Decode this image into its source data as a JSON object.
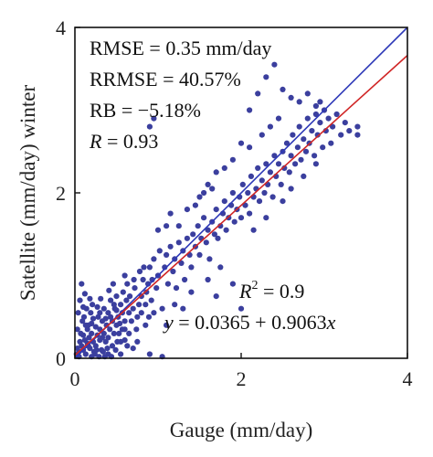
{
  "chart_data": {
    "type": "scatter",
    "title": "",
    "xlabel": "Gauge (mm/day)",
    "ylabel": "Satellite (mm/day) winter",
    "xlim": [
      0,
      4
    ],
    "ylim": [
      0,
      4
    ],
    "xticks": [
      "0",
      "2",
      "4"
    ],
    "yticks": [
      "0",
      "2",
      "4"
    ],
    "grid": false,
    "point_color": "#3b3f9e",
    "lines": [
      {
        "label": "1:1 line",
        "color": "#2e39b8",
        "intercept": 0,
        "slope": 1
      },
      {
        "label": "fit",
        "color": "#d02626",
        "intercept": 0.0365,
        "slope": 0.9063
      }
    ],
    "stats": {
      "rmse": "RMSE = 0.35 mm/day",
      "rrmse": "RRMSE = 40.57%",
      "rb": "RB = −5.18%",
      "r_symbol": "R",
      "r_value": " = 0.93",
      "r2_symbol": "R",
      "r2_sup": "2",
      "r2_value": " = 0.9",
      "eq_y": "y",
      "eq_mid": " = 0.0365 + 0.9063",
      "eq_x": "x"
    },
    "points": [
      [
        0.02,
        0.05
      ],
      [
        0.03,
        0.12
      ],
      [
        0.05,
        0.08
      ],
      [
        0.06,
        0.2
      ],
      [
        0.08,
        0.15
      ],
      [
        0.1,
        0.1
      ],
      [
        0.1,
        0.28
      ],
      [
        0.12,
        0.22
      ],
      [
        0.13,
        0.05
      ],
      [
        0.15,
        0.35
      ],
      [
        0.15,
        0.18
      ],
      [
        0.17,
        0.25
      ],
      [
        0.18,
        0.12
      ],
      [
        0.2,
        0.3
      ],
      [
        0.2,
        0.42
      ],
      [
        0.22,
        0.2
      ],
      [
        0.23,
        0.08
      ],
      [
        0.25,
        0.38
      ],
      [
        0.25,
        0.15
      ],
      [
        0.27,
        0.28
      ],
      [
        0.28,
        0.5
      ],
      [
        0.3,
        0.22
      ],
      [
        0.3,
        0.35
      ],
      [
        0.32,
        0.1
      ],
      [
        0.33,
        0.45
      ],
      [
        0.35,
        0.3
      ],
      [
        0.35,
        0.6
      ],
      [
        0.37,
        0.2
      ],
      [
        0.38,
        0.4
      ],
      [
        0.4,
        0.55
      ],
      [
        0.4,
        0.25
      ],
      [
        0.42,
        0.35
      ],
      [
        0.43,
        0.7
      ],
      [
        0.45,
        0.45
      ],
      [
        0.45,
        0.15
      ],
      [
        0.47,
        0.3
      ],
      [
        0.48,
        0.6
      ],
      [
        0.5,
        0.4
      ],
      [
        0.5,
        0.75
      ],
      [
        0.52,
        0.5
      ],
      [
        0.53,
        0.3
      ],
      [
        0.55,
        0.65
      ],
      [
        0.55,
        0.2
      ],
      [
        0.57,
        0.55
      ],
      [
        0.58,
        0.8
      ],
      [
        0.6,
        0.45
      ],
      [
        0.6,
        0.35
      ],
      [
        0.62,
        0.7
      ],
      [
        0.63,
        0.9
      ],
      [
        0.65,
        0.55
      ],
      [
        0.05,
        0.02
      ],
      [
        0.07,
        0.3
      ],
      [
        0.09,
        0.45
      ],
      [
        0.11,
        0.5
      ],
      [
        0.14,
        0.6
      ],
      [
        0.16,
        0.4
      ],
      [
        0.19,
        0.55
      ],
      [
        0.21,
        0.65
      ],
      [
        0.24,
        0.05
      ],
      [
        0.26,
        0.1
      ],
      [
        0.29,
        0.02
      ],
      [
        0.31,
        0.72
      ],
      [
        0.34,
        0.08
      ],
      [
        0.36,
        0.02
      ],
      [
        0.39,
        0.12
      ],
      [
        0.41,
        0.82
      ],
      [
        0.44,
        0.02
      ],
      [
        0.46,
        0.9
      ],
      [
        0.49,
        0.1
      ],
      [
        0.51,
        0.2
      ],
      [
        0.08,
        0.9
      ],
      [
        0.12,
        0.78
      ],
      [
        0.18,
        0.72
      ],
      [
        0.6,
        1.0
      ],
      [
        0.7,
        0.6
      ],
      [
        0.72,
        0.85
      ],
      [
        0.75,
        0.5
      ],
      [
        0.78,
        1.05
      ],
      [
        0.8,
        0.75
      ],
      [
        0.82,
        0.95
      ],
      [
        0.85,
        0.4
      ],
      [
        0.88,
        0.9
      ],
      [
        0.9,
        1.1
      ],
      [
        0.92,
        0.7
      ],
      [
        0.95,
        1.2
      ],
      [
        0.98,
        0.85
      ],
      [
        1.0,
        1.0
      ],
      [
        1.02,
        1.3
      ],
      [
        1.05,
        0.6
      ],
      [
        1.08,
        1.1
      ],
      [
        0.9,
        0.05
      ],
      [
        1.05,
        0.02
      ],
      [
        0.75,
        0.2
      ],
      [
        1.1,
        1.25
      ],
      [
        1.12,
        0.9
      ],
      [
        1.15,
        1.35
      ],
      [
        1.18,
        1.05
      ],
      [
        1.2,
        1.2
      ],
      [
        1.22,
        0.85
      ],
      [
        1.25,
        1.4
      ],
      [
        1.28,
        1.15
      ],
      [
        1.3,
        1.3
      ],
      [
        1.32,
        0.95
      ],
      [
        1.35,
        1.45
      ],
      [
        1.38,
        1.25
      ],
      [
        1.4,
        1.1
      ],
      [
        1.42,
        1.5
      ],
      [
        1.45,
        1.35
      ],
      [
        1.48,
        1.6
      ],
      [
        1.5,
        1.25
      ],
      [
        1.52,
        1.45
      ],
      [
        1.55,
        1.7
      ],
      [
        1.58,
        1.4
      ],
      [
        1.6,
        1.55
      ],
      [
        1.62,
        1.2
      ],
      [
        1.65,
        1.65
      ],
      [
        1.68,
        1.5
      ],
      [
        1.7,
        1.8
      ],
      [
        1.72,
        1.45
      ],
      [
        1.75,
        1.6
      ],
      [
        1.78,
        1.75
      ],
      [
        1.8,
        1.9
      ],
      [
        1.82,
        1.55
      ],
      [
        1.85,
        1.7
      ],
      [
        1.88,
        1.85
      ],
      [
        1.9,
        2.0
      ],
      [
        1.92,
        1.65
      ],
      [
        1.95,
        1.8
      ],
      [
        1.98,
        1.95
      ],
      [
        2.0,
        1.7
      ],
      [
        2.02,
        2.1
      ],
      [
        2.05,
        1.85
      ],
      [
        2.08,
        2.0
      ],
      [
        2.1,
        1.75
      ],
      [
        2.12,
        2.2
      ],
      [
        2.15,
        1.95
      ],
      [
        2.18,
        2.05
      ],
      [
        2.2,
        2.3
      ],
      [
        2.22,
        1.9
      ],
      [
        2.25,
        2.15
      ],
      [
        2.28,
        2.0
      ],
      [
        2.3,
        2.35
      ],
      [
        2.32,
        2.1
      ],
      [
        2.35,
        2.25
      ],
      [
        2.38,
        1.95
      ],
      [
        2.4,
        2.45
      ],
      [
        2.42,
        2.2
      ],
      [
        2.45,
        2.35
      ],
      [
        2.48,
        2.1
      ],
      [
        2.5,
        2.5
      ],
      [
        2.52,
        2.3
      ],
      [
        2.55,
        2.6
      ],
      [
        2.58,
        2.25
      ],
      [
        2.6,
        2.45
      ],
      [
        2.62,
        2.7
      ],
      [
        2.65,
        2.35
      ],
      [
        2.68,
        2.55
      ],
      [
        2.7,
        2.8
      ],
      [
        2.72,
        2.4
      ],
      [
        2.75,
        2.65
      ],
      [
        2.78,
        2.5
      ],
      [
        2.8,
        2.9
      ],
      [
        2.82,
        2.6
      ],
      [
        2.85,
        2.75
      ],
      [
        2.88,
        2.45
      ],
      [
        2.9,
        2.95
      ],
      [
        2.92,
        2.7
      ],
      [
        2.95,
        2.85
      ],
      [
        2.98,
        2.55
      ],
      [
        3.0,
        3.0
      ],
      [
        3.02,
        2.75
      ],
      [
        3.05,
        2.9
      ],
      [
        3.08,
        2.6
      ],
      [
        3.1,
        2.8
      ],
      [
        3.15,
        2.95
      ],
      [
        3.2,
        2.7
      ],
      [
        3.25,
        2.85
      ],
      [
        3.3,
        2.75
      ],
      [
        3.4,
        2.8
      ],
      [
        3.4,
        2.7
      ],
      [
        2.1,
        3.0
      ],
      [
        2.2,
        3.2
      ],
      [
        2.3,
        3.4
      ],
      [
        2.5,
        3.25
      ],
      [
        2.6,
        3.15
      ],
      [
        2.4,
        3.55
      ],
      [
        2.7,
        3.1
      ],
      [
        2.8,
        3.2
      ],
      [
        2.9,
        3.05
      ],
      [
        2.95,
        3.1
      ],
      [
        2.0,
        2.6
      ],
      [
        1.9,
        2.4
      ],
      [
        1.8,
        2.3
      ],
      [
        1.7,
        2.25
      ],
      [
        1.6,
        2.1
      ],
      [
        1.5,
        1.95
      ],
      [
        2.1,
        2.55
      ],
      [
        2.25,
        2.7
      ],
      [
        2.35,
        2.8
      ],
      [
        2.45,
        2.9
      ],
      [
        1.9,
        0.9
      ],
      [
        2.0,
        0.6
      ],
      [
        1.7,
        0.75
      ],
      [
        1.3,
        0.6
      ],
      [
        2.15,
        1.55
      ],
      [
        2.3,
        1.7
      ],
      [
        2.5,
        1.9
      ],
      [
        2.6,
        2.05
      ],
      [
        2.75,
        2.2
      ],
      [
        2.9,
        2.35
      ],
      [
        1.1,
        0.4
      ],
      [
        1.2,
        0.65
      ],
      [
        1.4,
        0.8
      ],
      [
        1.6,
        0.95
      ],
      [
        1.75,
        1.1
      ],
      [
        0.95,
        0.55
      ],
      [
        0.85,
        0.65
      ],
      [
        0.65,
        0.3
      ],
      [
        0.55,
        0.05
      ],
      [
        0.7,
        0.12
      ],
      [
        0.95,
        2.9
      ],
      [
        0.9,
        2.8
      ],
      [
        1.15,
        1.75
      ],
      [
        1.25,
        1.6
      ],
      [
        1.35,
        1.8
      ],
      [
        1.55,
        2.0
      ],
      [
        1.65,
        2.05
      ],
      [
        1.45,
        1.85
      ],
      [
        1.0,
        1.55
      ],
      [
        1.1,
        1.6
      ],
      [
        0.03,
        0.35
      ],
      [
        0.04,
        0.55
      ],
      [
        0.06,
        0.7
      ],
      [
        0.1,
        0.62
      ],
      [
        0.13,
        0.4
      ],
      [
        0.16,
        0.15
      ],
      [
        0.2,
        0.02
      ],
      [
        0.22,
        0.48
      ],
      [
        0.27,
        0.62
      ],
      [
        0.3,
        0.55
      ],
      [
        0.33,
        0.25
      ],
      [
        0.37,
        0.48
      ],
      [
        0.4,
        0.05
      ],
      [
        0.43,
        0.5
      ],
      [
        0.47,
        0.65
      ],
      [
        0.5,
        0.58
      ],
      [
        0.54,
        0.42
      ],
      [
        0.57,
        0.35
      ],
      [
        0.6,
        0.22
      ],
      [
        0.63,
        0.15
      ],
      [
        0.66,
        0.75
      ],
      [
        0.68,
        0.45
      ],
      [
        0.71,
        0.95
      ],
      [
        0.74,
        0.35
      ],
      [
        0.77,
        0.65
      ],
      [
        0.8,
        0.55
      ],
      [
        0.83,
        1.1
      ],
      [
        0.86,
        0.8
      ],
      [
        0.89,
        0.5
      ],
      [
        0.93,
        0.95
      ]
    ]
  }
}
